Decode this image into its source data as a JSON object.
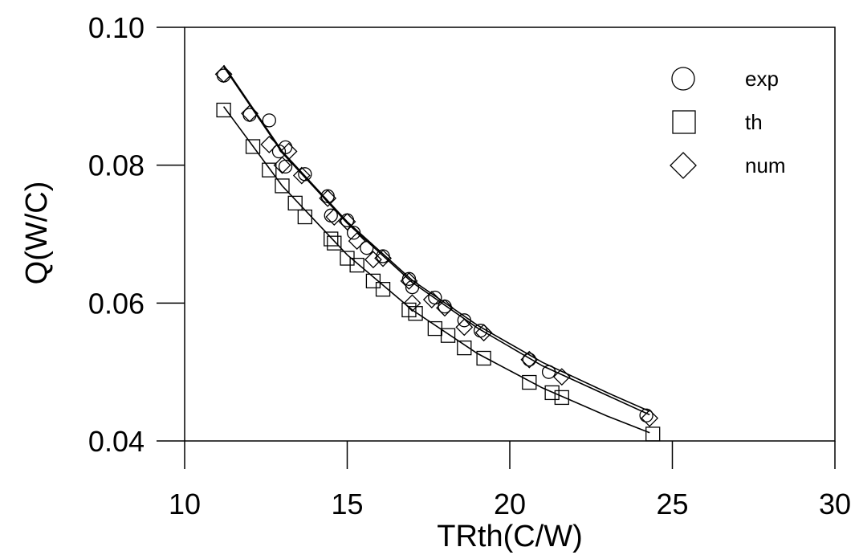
{
  "chart_data": {
    "type": "scatter",
    "title": "",
    "xlabel": "TRth(C/W)",
    "ylabel": "Q(W/C)",
    "xlim": [
      10,
      30
    ],
    "ylim": [
      0.04,
      0.1
    ],
    "xticks": [
      10,
      15,
      20,
      25,
      30
    ],
    "xtick_labels": [
      "10",
      "15",
      "20",
      "25",
      "30"
    ],
    "yticks": [
      0.04,
      0.06,
      0.08,
      0.1
    ],
    "ytick_labels": [
      "0.04",
      "0.06",
      "0.08",
      "0.10"
    ],
    "grid": false,
    "legend_position": "top-right",
    "series": [
      {
        "name": "exp",
        "marker": "circle",
        "points": [
          [
            11.2,
            0.093
          ],
          [
            12.0,
            0.0873
          ],
          [
            12.6,
            0.0865
          ],
          [
            12.9,
            0.082
          ],
          [
            13.1,
            0.0826
          ],
          [
            13.1,
            0.0798
          ],
          [
            13.7,
            0.0787
          ],
          [
            14.4,
            0.0755
          ],
          [
            14.5,
            0.0727
          ],
          [
            15.0,
            0.072
          ],
          [
            15.2,
            0.0702
          ],
          [
            15.6,
            0.068
          ],
          [
            16.1,
            0.0668
          ],
          [
            16.9,
            0.0635
          ],
          [
            17.0,
            0.0623
          ],
          [
            17.7,
            0.0608
          ],
          [
            18.0,
            0.0595
          ],
          [
            18.6,
            0.0575
          ],
          [
            19.1,
            0.056
          ],
          [
            20.6,
            0.0518
          ],
          [
            21.2,
            0.05
          ],
          [
            24.2,
            0.0437
          ]
        ]
      },
      {
        "name": "th",
        "marker": "square",
        "points": [
          [
            11.2,
            0.088
          ],
          [
            12.1,
            0.0827
          ],
          [
            12.6,
            0.0793
          ],
          [
            13.0,
            0.077
          ],
          [
            13.4,
            0.0745
          ],
          [
            13.7,
            0.0725
          ],
          [
            14.5,
            0.0693
          ],
          [
            14.6,
            0.0687
          ],
          [
            15.0,
            0.0665
          ],
          [
            15.3,
            0.0655
          ],
          [
            15.8,
            0.0632
          ],
          [
            16.1,
            0.062
          ],
          [
            16.9,
            0.059
          ],
          [
            17.1,
            0.0585
          ],
          [
            17.7,
            0.0563
          ],
          [
            18.1,
            0.0553
          ],
          [
            18.6,
            0.0535
          ],
          [
            19.2,
            0.052
          ],
          [
            20.6,
            0.0485
          ],
          [
            21.3,
            0.047
          ],
          [
            21.6,
            0.0463
          ],
          [
            24.4,
            0.041
          ]
        ]
      },
      {
        "name": "num",
        "marker": "diamond",
        "points": [
          [
            11.2,
            0.0932
          ],
          [
            12.0,
            0.0875
          ],
          [
            12.6,
            0.083
          ],
          [
            13.0,
            0.08
          ],
          [
            13.2,
            0.082
          ],
          [
            13.6,
            0.0785
          ],
          [
            14.4,
            0.0752
          ],
          [
            14.6,
            0.0725
          ],
          [
            15.0,
            0.0718
          ],
          [
            15.3,
            0.069
          ],
          [
            15.8,
            0.0663
          ],
          [
            16.1,
            0.0665
          ],
          [
            16.9,
            0.0632
          ],
          [
            17.0,
            0.06
          ],
          [
            17.6,
            0.0605
          ],
          [
            18.0,
            0.0593
          ],
          [
            18.6,
            0.0565
          ],
          [
            19.2,
            0.0557
          ],
          [
            20.6,
            0.0518
          ],
          [
            21.6,
            0.0493
          ],
          [
            24.3,
            0.0433
          ]
        ]
      }
    ],
    "fit_curves": [
      {
        "x": [
          11.2,
          13.0,
          15.0,
          17.0,
          19.0,
          21.0,
          23.0,
          24.3
        ],
        "y": [
          0.0943,
          0.0818,
          0.0716,
          0.063,
          0.0564,
          0.0509,
          0.0466,
          0.0438
        ]
      },
      {
        "x": [
          11.2,
          13.0,
          15.0,
          17.0,
          19.0,
          21.0,
          23.0,
          24.3
        ],
        "y": [
          0.0945,
          0.082,
          0.0718,
          0.0633,
          0.0568,
          0.0514,
          0.047,
          0.0443
        ]
      },
      {
        "x": [
          11.2,
          13.0,
          15.0,
          17.0,
          19.0,
          21.0,
          23.0,
          24.3
        ],
        "y": [
          0.0885,
          0.077,
          0.067,
          0.059,
          0.0527,
          0.0477,
          0.0436,
          0.0412
        ]
      }
    ]
  }
}
